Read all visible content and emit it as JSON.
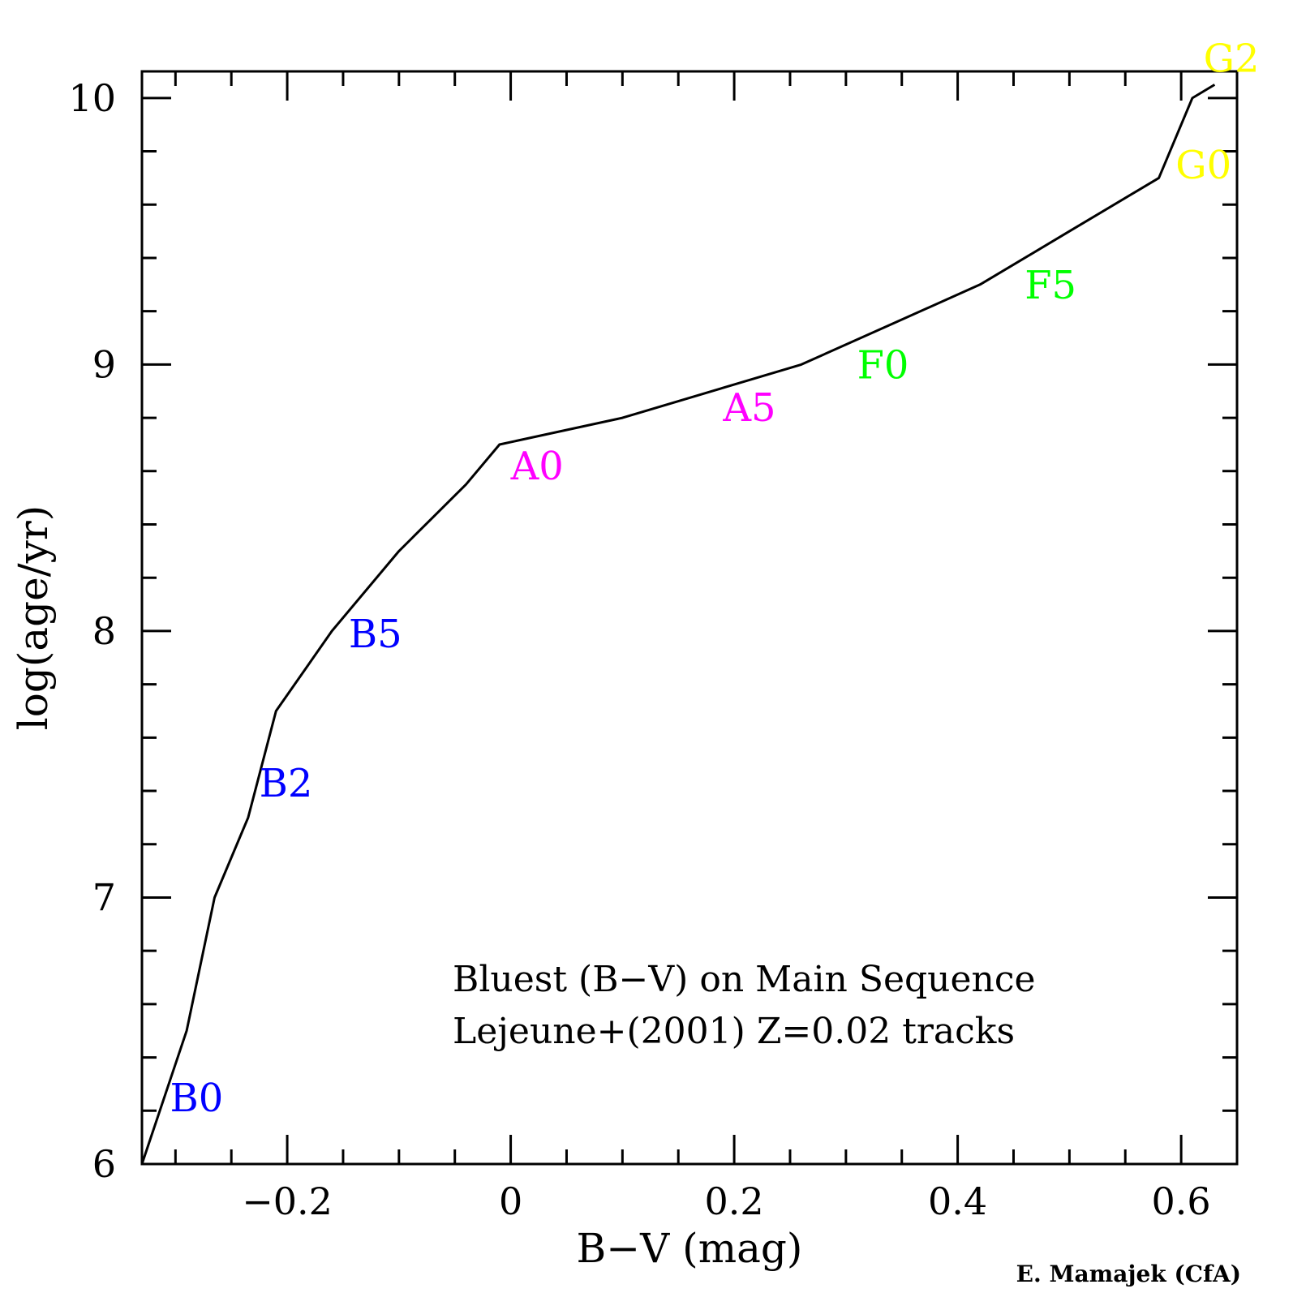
{
  "chart_data": {
    "type": "line",
    "title": "",
    "xlabel": "B−V (mag)",
    "ylabel": "log(age/yr)",
    "xlim": [
      -0.33,
      0.65
    ],
    "ylim": [
      6,
      10.1
    ],
    "x_ticks": [
      {
        "value": -0.2,
        "label": "−0.2"
      },
      {
        "value": 0,
        "label": "0"
      },
      {
        "value": 0.2,
        "label": "0.2"
      },
      {
        "value": 0.4,
        "label": "0.4"
      },
      {
        "value": 0.6,
        "label": "0.6"
      }
    ],
    "y_ticks": [
      {
        "value": 6,
        "label": "6"
      },
      {
        "value": 7,
        "label": "7"
      },
      {
        "value": 8,
        "label": "8"
      },
      {
        "value": 9,
        "label": "9"
      },
      {
        "value": 10,
        "label": "10"
      }
    ],
    "x_minor_step": 0.05,
    "y_minor_step": 0.2,
    "grid": false,
    "series": [
      {
        "color": "#000000",
        "x": [
          -0.33,
          -0.29,
          -0.265,
          -0.235,
          -0.21,
          -0.16,
          -0.1,
          -0.04,
          -0.01,
          0.1,
          0.26,
          0.34,
          0.42,
          0.5,
          0.58,
          0.61,
          0.63
        ],
        "y": [
          6.0,
          6.5,
          7.0,
          7.3,
          7.7,
          8.0,
          8.3,
          8.55,
          8.7,
          8.8,
          9.0,
          9.15,
          9.3,
          9.5,
          9.7,
          10.0,
          10.05
        ]
      }
    ],
    "annotations": [
      {
        "text": "B0",
        "x": -0.305,
        "y": 6.25,
        "color": "#0000ff"
      },
      {
        "text": "B2",
        "x": -0.225,
        "y": 7.43,
        "color": "#0000ff"
      },
      {
        "text": "B5",
        "x": -0.145,
        "y": 7.99,
        "color": "#0000ff"
      },
      {
        "text": "A0",
        "x": 0.0,
        "y": 8.62,
        "color": "#ff00ff"
      },
      {
        "text": "A5",
        "x": 0.19,
        "y": 8.84,
        "color": "#ff00ff"
      },
      {
        "text": "F0",
        "x": 0.31,
        "y": 9.0,
        "color": "#00ff00"
      },
      {
        "text": "F5",
        "x": 0.46,
        "y": 9.3,
        "color": "#00ff00"
      },
      {
        "text": "G0",
        "x": 0.595,
        "y": 9.75,
        "color": "#ffff00"
      },
      {
        "text": "G2",
        "x": 0.62,
        "y": 10.15,
        "color": "#ffff00"
      }
    ],
    "notes": [
      "Bluest (B−V) on Main Sequence",
      "Lejeune+(2001) Z=0.02 tracks"
    ],
    "credit": "E. Mamajek (CfA)"
  }
}
